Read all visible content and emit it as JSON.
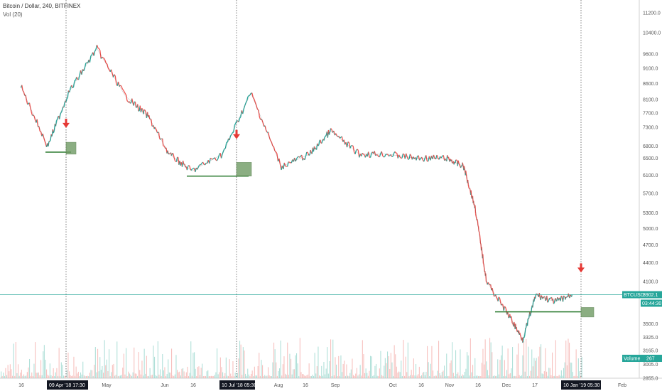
{
  "header": {
    "symbol_line": "Bitcoin / Dollar, 240, BITFINEX",
    "volume_indicator": "Vol (20)"
  },
  "price_axis": {
    "ticks": [
      11200.0,
      10400.0,
      9600.0,
      9100.0,
      8600.0,
      8100.0,
      7700.0,
      7300.0,
      6800.0,
      6500.0,
      6100.0,
      5700.0,
      5300.0,
      5000.0,
      4700.0,
      4400.0,
      4100.0,
      3500.0,
      3325.0,
      3165.0,
      3005.0,
      2855.0
    ],
    "tick_labels": [
      "11200.0",
      "10400.0",
      "9600.0",
      "9100.0",
      "8600.0",
      "8100.0",
      "7700.0",
      "7300.0",
      "6800.0",
      "6500.0",
      "6100.0",
      "5700.0",
      "5300.0",
      "5000.0",
      "4700.0",
      "4400.0",
      "4100.0",
      "3500.0",
      "3325.0",
      "3165.0",
      "3005.0",
      "2855.0"
    ]
  },
  "time_axis": {
    "labels": [
      "16",
      "May",
      "Jun",
      "16",
      "Aug",
      "16",
      "Sep",
      "Oct",
      "16",
      "Nov",
      "16",
      "Dec",
      "17",
      "Feb"
    ],
    "highlight_labels": [
      "09 Apr '18   17:30",
      "10 Jul '18   05:30",
      "10 Jan '19   05:30"
    ]
  },
  "tags": {
    "last_price_label": "BTCUSD",
    "last_price_value": "3902.1",
    "countdown": "03:44:30",
    "volume_label": "Volume",
    "volume_value": "267"
  },
  "colors": {
    "up": "#26a69a",
    "down": "#ef5350",
    "price_line": "#26a69a",
    "marker_arrow": "#e53935",
    "support_line": "#2e7d32",
    "zone_fill": "#6f9a63"
  },
  "annotations": [
    {
      "type": "vertical-line",
      "time": "09 Apr '18 17:30"
    },
    {
      "type": "vertical-line",
      "time": "10 Jul '18 05:30"
    },
    {
      "type": "vertical-line",
      "time": "10 Jan '19 05:30"
    },
    {
      "type": "down-arrow",
      "near": "09 Apr '18"
    },
    {
      "type": "down-arrow",
      "near": "10 Jul '18"
    },
    {
      "type": "down-arrow",
      "near": "10 Jan '19"
    },
    {
      "type": "support-line",
      "price": 6650
    },
    {
      "type": "support-line",
      "price": 6080
    },
    {
      "type": "support-line",
      "price": 3660
    }
  ],
  "chart_data": {
    "type": "line",
    "title": "Bitcoin / Dollar, 240, BITFINEX",
    "x": [
      "2018-03-26",
      "2018-04-09",
      "2018-04-20",
      "2018-05-05",
      "2018-05-20",
      "2018-06-01",
      "2018-06-12",
      "2018-06-24",
      "2018-07-10",
      "2018-07-25",
      "2018-08-10",
      "2018-08-25",
      "2018-09-05",
      "2018-09-20",
      "2018-10-05",
      "2018-10-20",
      "2018-11-05",
      "2018-11-14",
      "2018-11-20",
      "2018-11-26",
      "2018-12-08",
      "2018-12-15",
      "2018-12-22",
      "2019-01-01",
      "2019-01-10"
    ],
    "series": [
      {
        "values": [
          8500,
          6800,
          8300,
          9800,
          8200,
          7600,
          6600,
          6200,
          6600,
          8300,
          6300,
          6600,
          7200,
          6600,
          6600,
          6500,
          6500,
          6300,
          5400,
          4100,
          3600,
          3300,
          3900,
          3800,
          3902
        ]
      }
    ],
    "ylim": [
      2855,
      11500
    ],
    "y_scale": "log",
    "grid": false,
    "legend": "none"
  }
}
